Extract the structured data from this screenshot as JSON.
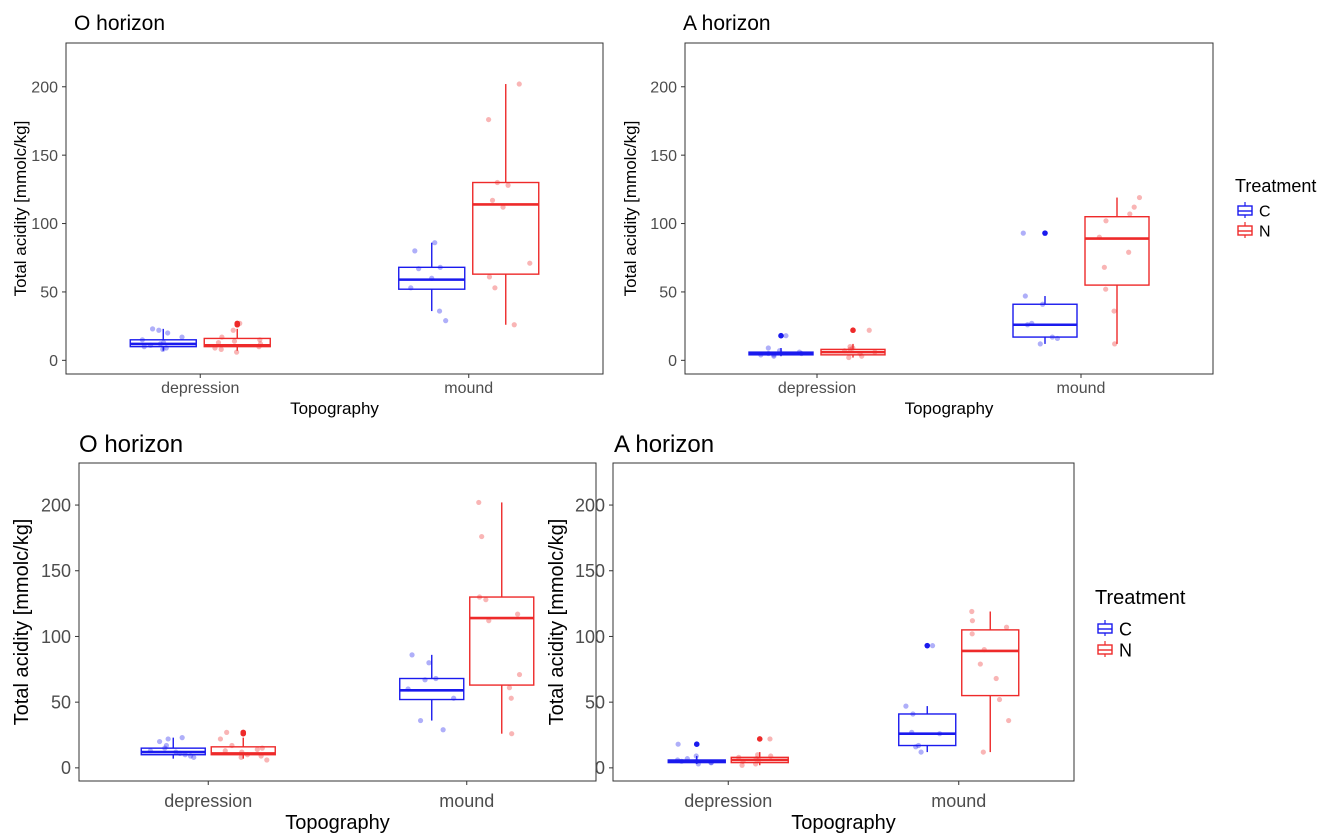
{
  "colors": {
    "C": "#1a1aee",
    "N": "#ee2a2a",
    "frame": "#333333",
    "tick_text": "#4d4d4d",
    "title": "#000000"
  },
  "legend": {
    "title": "Treatment",
    "items": [
      {
        "key": "C",
        "label": "C"
      },
      {
        "key": "N",
        "label": "N"
      }
    ]
  },
  "chart_data": [
    {
      "type": "box",
      "title": "O horizon",
      "xlabel": "Topography",
      "ylabel": "Total acidity [mmolc/kg]",
      "categories": [
        "depression",
        "mound"
      ],
      "ylim": [
        -10,
        232
      ],
      "yticks": [
        0,
        50,
        100,
        150,
        200
      ],
      "grid": false,
      "series": [
        {
          "name": "C",
          "boxes": [
            {
              "category": "depression",
              "min": 7,
              "q1": 10,
              "median": 12,
              "q3": 15,
              "max": 23,
              "outliers": [],
              "points": [
                8,
                9,
                10,
                11,
                12,
                13,
                15,
                17,
                20,
                22,
                23
              ]
            },
            {
              "category": "mound",
              "min": 36,
              "q1": 52,
              "median": 59,
              "q3": 68,
              "max": 86,
              "outliers": [],
              "points": [
                29,
                36,
                53,
                60,
                67,
                68,
                80,
                86
              ]
            }
          ]
        },
        {
          "name": "N",
          "boxes": [
            {
              "category": "depression",
              "min": 7,
              "q1": 10,
              "median": 11,
              "q3": 16,
              "max": 23,
              "outliers": [
                26,
                27
              ],
              "points": [
                6,
                8,
                9,
                10,
                12,
                13,
                14,
                15,
                17,
                22,
                27
              ]
            },
            {
              "category": "mound",
              "min": 26,
              "q1": 63,
              "median": 114,
              "q3": 130,
              "max": 202,
              "outliers": [],
              "points": [
                26,
                53,
                61,
                71,
                112,
                117,
                128,
                130,
                176,
                202
              ]
            }
          ]
        }
      ]
    },
    {
      "type": "box",
      "title": "A horizon",
      "xlabel": "Topography",
      "ylabel": "Total acidity [mmolc/kg]",
      "categories": [
        "depression",
        "mound"
      ],
      "ylim": [
        -10,
        232
      ],
      "yticks": [
        0,
        50,
        100,
        150,
        200
      ],
      "grid": false,
      "series": [
        {
          "name": "C",
          "boxes": [
            {
              "category": "depression",
              "min": 3,
              "q1": 4,
              "median": 5,
              "q3": 6,
              "max": 9,
              "outliers": [
                18
              ],
              "points": [
                3,
                4,
                4,
                5,
                5,
                6,
                7,
                9,
                18
              ]
            },
            {
              "category": "mound",
              "min": 12,
              "q1": 17,
              "median": 26,
              "q3": 41,
              "max": 47,
              "outliers": [
                93
              ],
              "points": [
                12,
                16,
                17,
                26,
                27,
                41,
                47,
                93
              ]
            }
          ]
        },
        {
          "name": "N",
          "boxes": [
            {
              "category": "depression",
              "min": 2,
              "q1": 4,
              "median": 6,
              "q3": 8,
              "max": 12,
              "outliers": [
                22
              ],
              "points": [
                2,
                3,
                5,
                6,
                7,
                8,
                9,
                10,
                22
              ]
            },
            {
              "category": "mound",
              "min": 12,
              "q1": 55,
              "median": 89,
              "q3": 105,
              "max": 119,
              "outliers": [],
              "points": [
                12,
                36,
                52,
                68,
                79,
                90,
                102,
                107,
                112,
                119
              ]
            }
          ]
        }
      ]
    },
    {
      "type": "box",
      "title": "O horizon",
      "xlabel": "Topography",
      "ylabel": "Total acidity [mmolc/kg]",
      "categories": [
        "depression",
        "mound"
      ],
      "ylim": [
        -10,
        232
      ],
      "yticks": [
        0,
        50,
        100,
        150,
        200
      ],
      "grid": false,
      "series": [
        {
          "name": "C",
          "boxes": [
            {
              "category": "depression",
              "min": 7,
              "q1": 10,
              "median": 12,
              "q3": 15,
              "max": 23,
              "outliers": [],
              "points": [
                8,
                9,
                10,
                11,
                12,
                13,
                15,
                17,
                20,
                22,
                23
              ]
            },
            {
              "category": "mound",
              "min": 36,
              "q1": 52,
              "median": 59,
              "q3": 68,
              "max": 86,
              "outliers": [],
              "points": [
                29,
                36,
                53,
                60,
                67,
                68,
                80,
                86
              ]
            }
          ]
        },
        {
          "name": "N",
          "boxes": [
            {
              "category": "depression",
              "min": 7,
              "q1": 10,
              "median": 11,
              "q3": 16,
              "max": 23,
              "outliers": [
                26,
                27
              ],
              "points": [
                6,
                8,
                9,
                10,
                12,
                13,
                14,
                15,
                17,
                22,
                27
              ]
            },
            {
              "category": "mound",
              "min": 26,
              "q1": 63,
              "median": 114,
              "q3": 130,
              "max": 202,
              "outliers": [],
              "points": [
                26,
                53,
                61,
                71,
                112,
                117,
                128,
                130,
                176,
                202
              ]
            }
          ]
        }
      ]
    },
    {
      "type": "box",
      "title": "A horizon",
      "xlabel": "Topography",
      "ylabel": "Total acidity [mmolc/kg]",
      "categories": [
        "depression",
        "mound"
      ],
      "ylim": [
        -10,
        232
      ],
      "yticks": [
        0,
        50,
        100,
        150,
        200
      ],
      "grid": false,
      "series": [
        {
          "name": "C",
          "boxes": [
            {
              "category": "depression",
              "min": 3,
              "q1": 4,
              "median": 5,
              "q3": 6,
              "max": 9,
              "outliers": [
                18
              ],
              "points": [
                3,
                4,
                4,
                5,
                5,
                6,
                7,
                9,
                18
              ]
            },
            {
              "category": "mound",
              "min": 12,
              "q1": 17,
              "median": 26,
              "q3": 41,
              "max": 47,
              "outliers": [
                93
              ],
              "points": [
                12,
                16,
                17,
                26,
                27,
                41,
                47,
                93
              ]
            }
          ]
        },
        {
          "name": "N",
          "boxes": [
            {
              "category": "depression",
              "min": 2,
              "q1": 4,
              "median": 6,
              "q3": 8,
              "max": 12,
              "outliers": [
                22
              ],
              "points": [
                2,
                3,
                5,
                6,
                7,
                8,
                9,
                10,
                22
              ]
            },
            {
              "category": "mound",
              "min": 12,
              "q1": 55,
              "median": 89,
              "q3": 105,
              "max": 119,
              "outliers": [],
              "points": [
                12,
                36,
                52,
                68,
                79,
                90,
                102,
                107,
                112,
                119
              ]
            }
          ]
        }
      ]
    }
  ]
}
